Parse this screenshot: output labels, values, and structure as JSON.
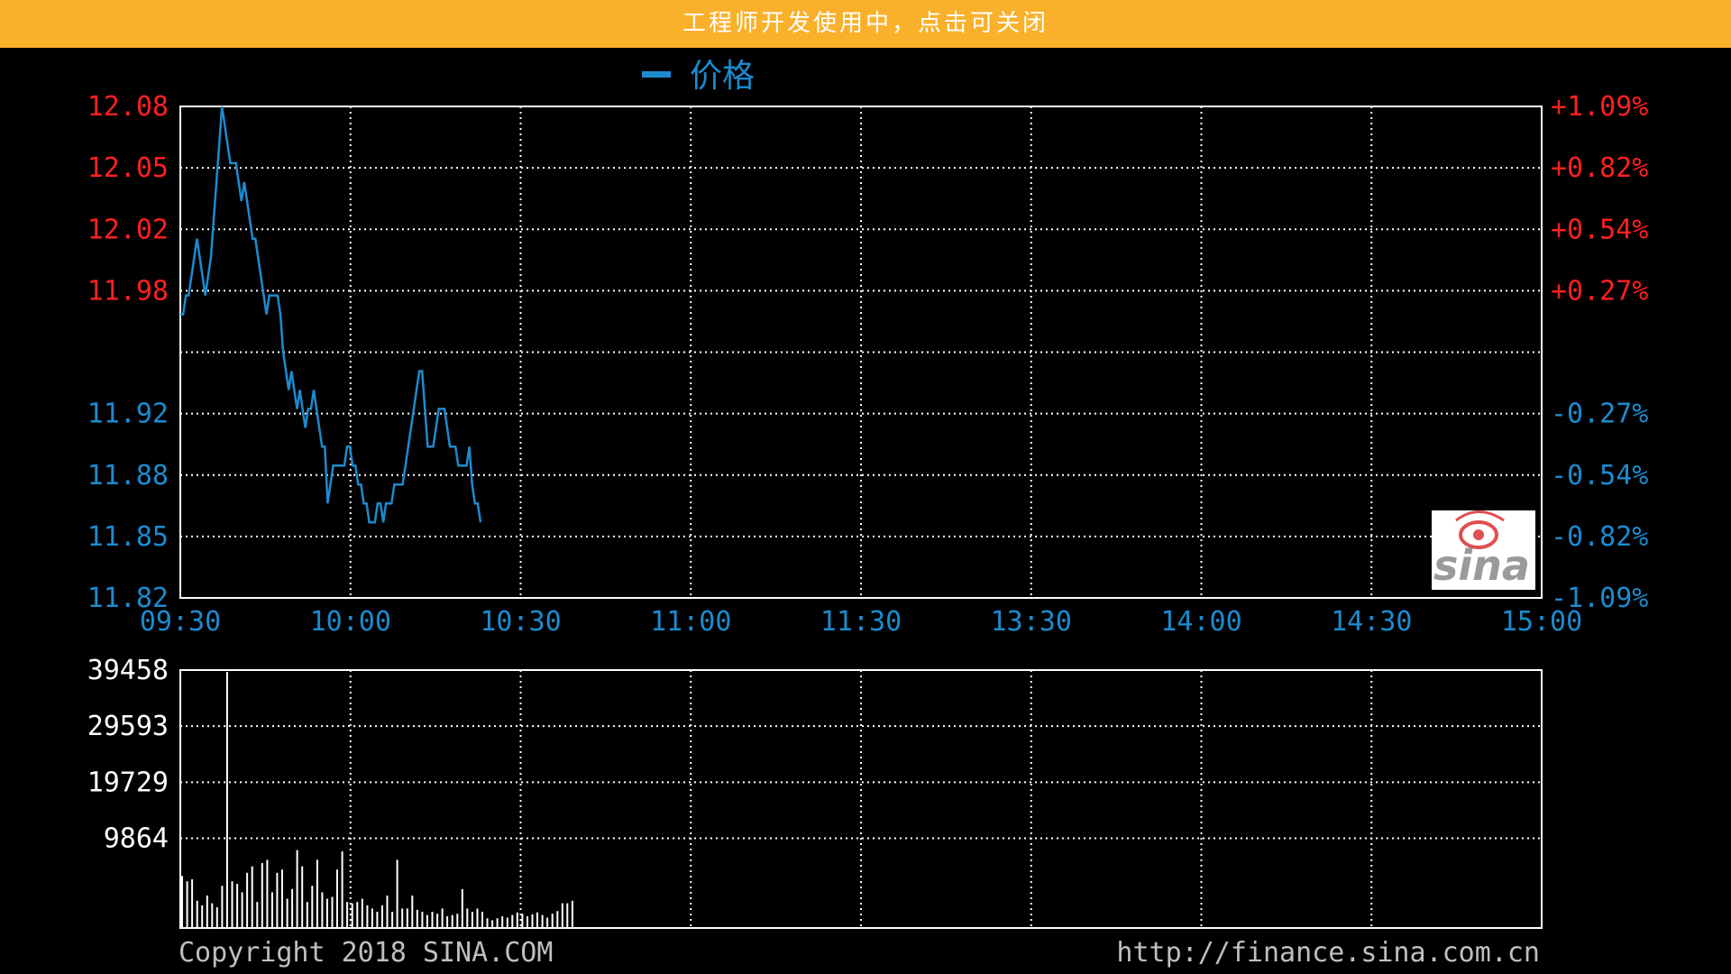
{
  "banner": {
    "text": "工程师开发使用中，点击可关闭"
  },
  "colors": {
    "banner": "#F9B12B",
    "background": "#000000",
    "line": "#1C8BCF",
    "up": "#FF2020",
    "down": "#1C8BCF",
    "grid": "#FFFFFF",
    "volume": "#FFFFFF"
  },
  "icons": {
    "logo": "sina-eye-logo"
  },
  "chart_data": [
    {
      "type": "line",
      "title": "",
      "legend": {
        "label": "价格",
        "position": "top"
      },
      "categories_axis": [
        "09:30",
        "10:00",
        "10:30",
        "11:00",
        "11:30",
        "13:30",
        "14:00",
        "14:30",
        "15:00"
      ],
      "y_left_ticks_up": [
        "12.08",
        "12.05",
        "12.02",
        "11.98"
      ],
      "y_left_ticks_down": [
        "11.92",
        "11.88",
        "11.85",
        "11.82"
      ],
      "y_right_ticks_up": [
        "+1.09%",
        "+0.82%",
        "+0.54%",
        "+0.27%"
      ],
      "y_right_ticks_down": [
        "-0.27%",
        "-0.54%",
        "-0.82%",
        "-1.09%"
      ],
      "ylim": [
        11.82,
        12.08
      ],
      "reference_price": 11.95,
      "grid": true,
      "series": [
        {
          "values": [
            11.97,
            11.97,
            11.98,
            11.98,
            11.99,
            12.0,
            12.01,
            12.0,
            11.99,
            11.98,
            11.99,
            12.0,
            12.02,
            12.04,
            12.06,
            12.08,
            12.07,
            12.06,
            12.05,
            12.05,
            12.05,
            12.04,
            12.03,
            12.04,
            12.03,
            12.02,
            12.01,
            12.01,
            12.0,
            11.99,
            11.98,
            11.97,
            11.98,
            11.98,
            11.98,
            11.98,
            11.97,
            11.95,
            11.94,
            11.93,
            11.94,
            11.93,
            11.92,
            11.93,
            11.92,
            11.91,
            11.92,
            11.92,
            11.93,
            11.92,
            11.91,
            11.9,
            11.9,
            11.87,
            11.88,
            11.89,
            11.89,
            11.89,
            11.89,
            11.89,
            11.9,
            11.9,
            11.89,
            11.89,
            11.88,
            11.88,
            11.87,
            11.87,
            11.86,
            11.86,
            11.86,
            11.87,
            11.87,
            11.86,
            11.87,
            11.87,
            11.87,
            11.88,
            11.88,
            11.88,
            11.88,
            11.89,
            11.9,
            11.91,
            11.92,
            11.93,
            11.94,
            11.94,
            11.92,
            11.9,
            11.9,
            11.9,
            11.91,
            11.92,
            11.92,
            11.92,
            11.91,
            11.9,
            11.9,
            11.9,
            11.89,
            11.89,
            11.89,
            11.89,
            11.9,
            11.88,
            11.87,
            11.87,
            11.86
          ]
        }
      ]
    },
    {
      "type": "bar",
      "title": "",
      "y_ticks": [
        "39458",
        "29593",
        "19729",
        "9864"
      ],
      "ylim": [
        0,
        39458
      ],
      "grid": true,
      "series": [
        {
          "values": [
            8000,
            7200,
            7500,
            4200,
            3500,
            5000,
            3800,
            3200,
            6500,
            39458,
            7200,
            6800,
            5500,
            8500,
            9500,
            4000,
            10000,
            10500,
            5500,
            8500,
            9000,
            4500,
            6000,
            12000,
            9500,
            4000,
            6500,
            10500,
            5500,
            4500,
            4800,
            9000,
            11800,
            4000,
            3800,
            4000,
            4500,
            3500,
            3000,
            2500,
            3500,
            5000,
            2500,
            10500,
            3000,
            3000,
            5000,
            2800,
            2500,
            2000,
            2500,
            2200,
            3000,
            1800,
            2000,
            2200,
            6000,
            3000,
            2500,
            3000,
            2500,
            1500,
            1200,
            1500,
            1800,
            1600,
            2000,
            2400,
            2200,
            1800,
            2100,
            2400,
            2000,
            1600,
            2200,
            2600,
            3800,
            3800,
            4200
          ]
        }
      ]
    }
  ],
  "footer": {
    "copyright": "Copyright 2018 SINA.COM",
    "url": "http://finance.sina.com.cn"
  }
}
